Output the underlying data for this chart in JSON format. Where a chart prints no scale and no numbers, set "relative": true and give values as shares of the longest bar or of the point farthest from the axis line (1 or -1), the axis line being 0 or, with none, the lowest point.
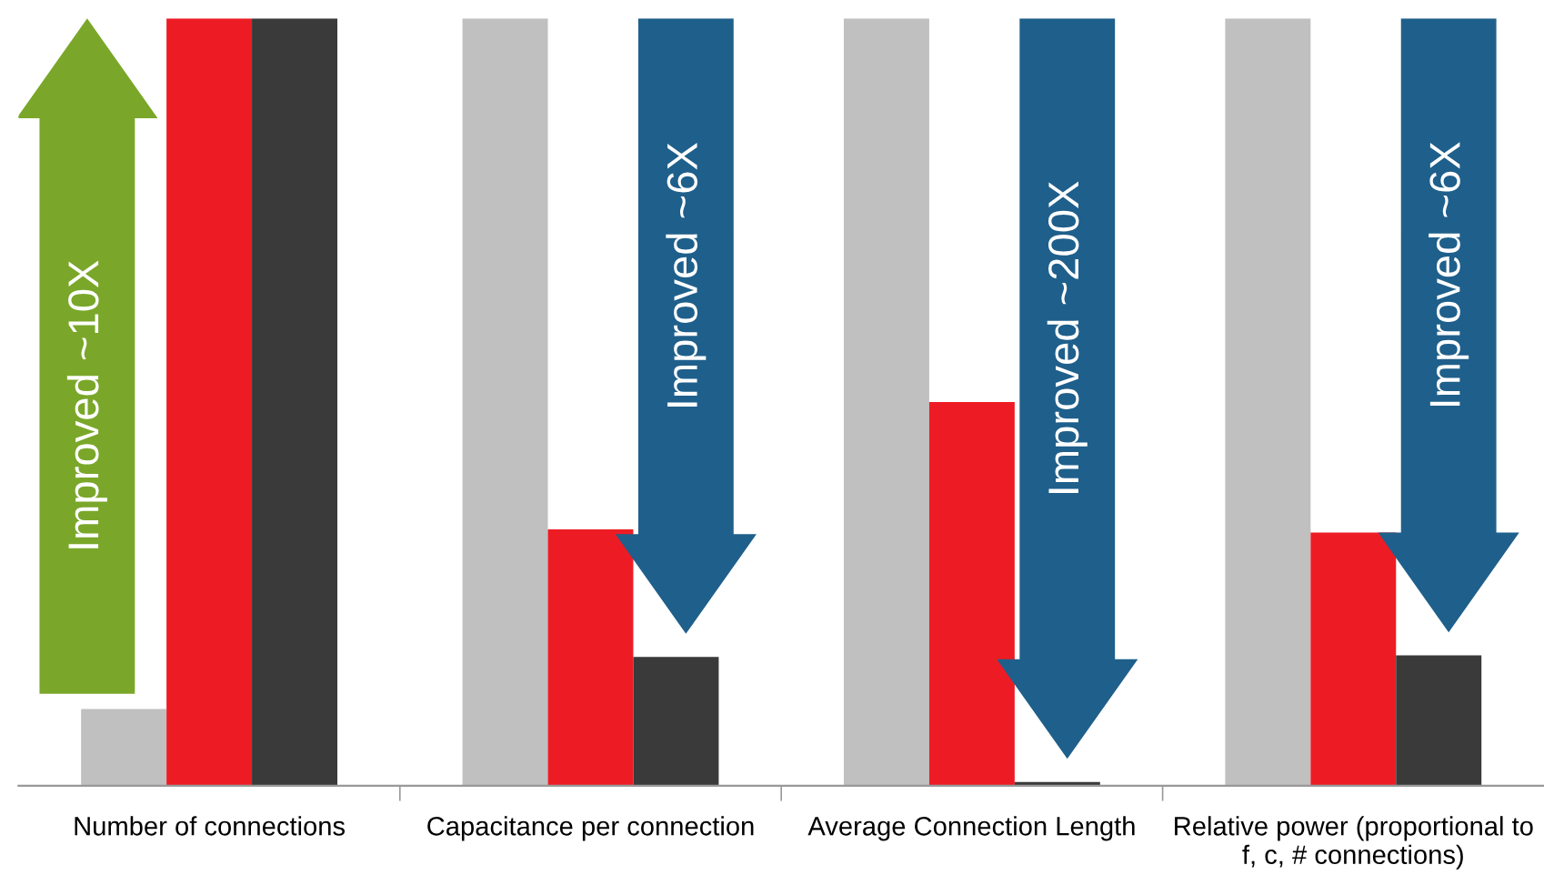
{
  "chart_data": {
    "type": "bar",
    "relative": true,
    "categories": [
      "Number of connections",
      "Capacitance per connection",
      "Average Connection Length",
      "Relative power (proportional to\nf, c, # connections)"
    ],
    "series": [
      {
        "color": "#c0c0c0",
        "values": [
          0.1,
          1.0,
          1.0,
          1.0
        ]
      },
      {
        "color": "#ed1c24",
        "values": [
          1.0,
          0.334,
          0.5,
          0.33
        ]
      },
      {
        "color": "#3a3a3a",
        "values": [
          1.0,
          0.168,
          0.005,
          0.17
        ]
      }
    ],
    "annotations": [
      "Improved ~10X",
      "Improved ~6X",
      "Improved ~200X",
      "Improved ~6X"
    ],
    "grid": false,
    "legend": false
  }
}
